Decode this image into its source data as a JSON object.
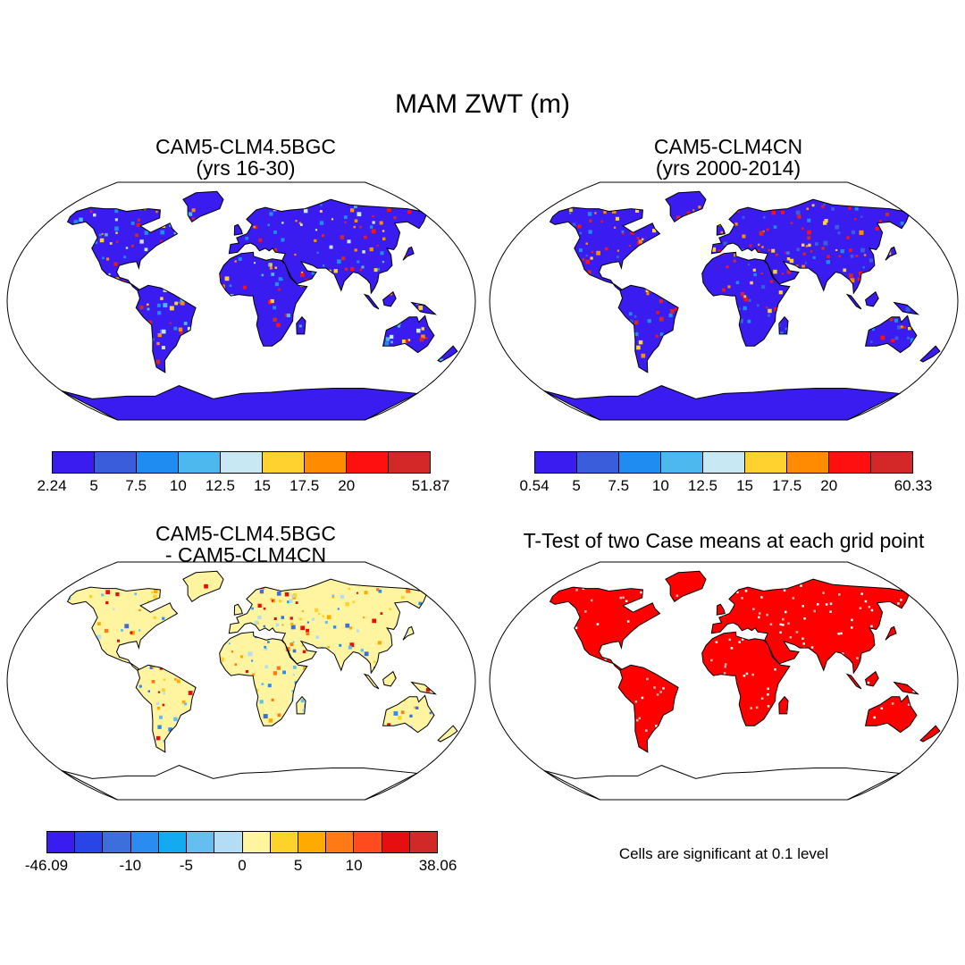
{
  "figure": {
    "title": "MAM ZWT (m)"
  },
  "panels": [
    {
      "title_line1": "CAM5-CLM4.5BGC",
      "title_line2": "(yrs 16-30)",
      "fill_style": "case1",
      "colorbar": {
        "tick_labels": [
          "2.24",
          "5",
          "7.5",
          "10",
          "12.5",
          "15",
          "17.5",
          "20",
          "51.87"
        ],
        "colors": [
          "#3a1cf0",
          "#3a5ddc",
          "#1e8cf0",
          "#4cb8ee",
          "#c8e8f4",
          "#ffd230",
          "#ff8c00",
          "#ff1010",
          "#d42828"
        ]
      }
    },
    {
      "title_line1": "CAM5-CLM4CN",
      "title_line2": "(yrs 2000-2014)",
      "fill_style": "case2",
      "colorbar": {
        "tick_labels": [
          "0.54",
          "5",
          "7.5",
          "10",
          "12.5",
          "15",
          "17.5",
          "20",
          "60.33"
        ],
        "colors": [
          "#3a1cf0",
          "#3a5ddc",
          "#1e8cf0",
          "#4cb8ee",
          "#c8e8f4",
          "#ffd230",
          "#ff8c00",
          "#ff1010",
          "#d42828"
        ]
      }
    },
    {
      "title_line1": "CAM5-CLM4.5BGC",
      "title_line2": "- CAM5-CLM4CN",
      "fill_style": "diff",
      "colorbar": {
        "tick_labels": [
          "-46.09",
          "-10",
          "-5",
          "0",
          "5",
          "10",
          "38.06"
        ],
        "colors": [
          "#3a1cf0",
          "#2846e6",
          "#3c6edc",
          "#2a8cf0",
          "#14aaf0",
          "#64bef0",
          "#b4dcf4",
          "#fff5a0",
          "#ffd22a",
          "#ffaa00",
          "#ff7a14",
          "#ff4b1e",
          "#e60f0f",
          "#d22828"
        ]
      }
    },
    {
      "title_line1": "T-Test of two Case means at each grid point",
      "title_line2": "",
      "fill_style": "ttest",
      "note": "Cells are significant at 0.1 level"
    }
  ]
}
